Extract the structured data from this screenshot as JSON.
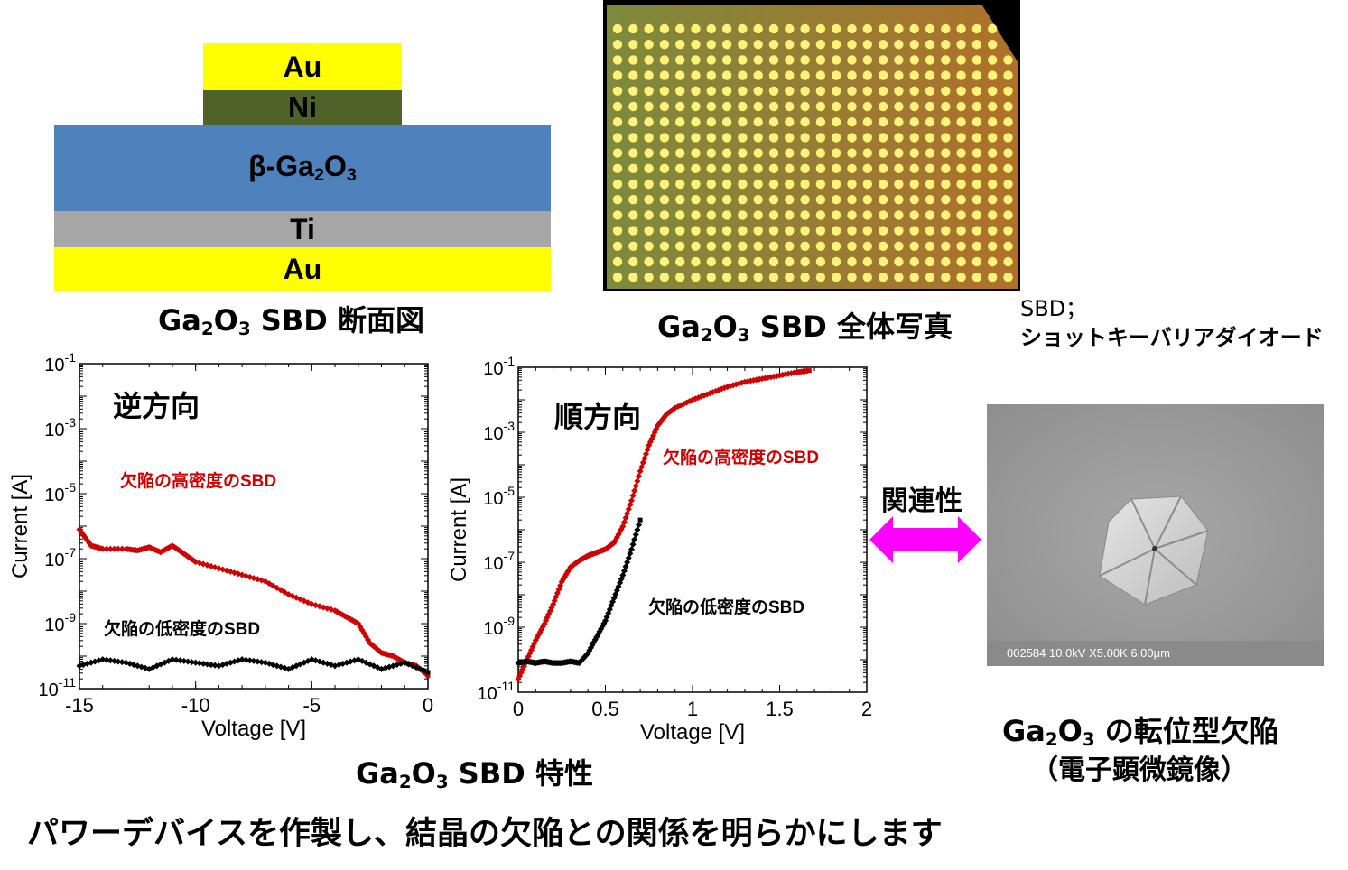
{
  "cross_section": {
    "layers": [
      {
        "label": "Au",
        "color": "#ffff00"
      },
      {
        "label": "Ni",
        "color": "#4f6228"
      },
      {
        "label_main": "β-Ga",
        "sub1": "2",
        "mid": "O",
        "sub2": "3",
        "color": "#4f81bd"
      },
      {
        "label": "Ti",
        "color": "#a6a6a6"
      },
      {
        "label": "Au",
        "color": "#ffff00"
      }
    ],
    "caption": {
      "a": "Ga",
      "s1": "2",
      "b": "O",
      "s2": "3",
      "c": " SBD 断面図"
    }
  },
  "photo": {
    "caption": {
      "a": "Ga",
      "s1": "2",
      "b": "O",
      "s2": "3",
      "c": " SBD 全体写真"
    },
    "colors": {
      "pad": "#fff27a",
      "bg": "#8a7a38"
    }
  },
  "note": {
    "line1": "SBD；",
    "line2": "ショットキーバリアダイオード"
  },
  "chart_data": [
    {
      "type": "scatter",
      "label": "逆方向",
      "xlabel": "Voltage [V]",
      "ylabel": "Current [A]",
      "xlim": [
        -15,
        0
      ],
      "ylim_log10": [
        -11,
        -1
      ],
      "xticks": [
        "-15",
        "-10",
        "-5",
        "0"
      ],
      "yticks": [
        {
          "base": "10",
          "exp": "-1",
          "v": -1
        },
        {
          "base": "10",
          "exp": "-3",
          "v": -3
        },
        {
          "base": "10",
          "exp": "-5",
          "v": -5
        },
        {
          "base": "10",
          "exp": "-7",
          "v": -7
        },
        {
          "base": "10",
          "exp": "-9",
          "v": -9
        },
        {
          "base": "10",
          "exp": "-11",
          "v": -11
        }
      ],
      "series": [
        {
          "name": "欠陥の高密度のSBD",
          "color": "#d00000",
          "x": [
            -15,
            -14.5,
            -14,
            -13,
            -12.5,
            -12,
            -11.5,
            -11,
            -10.5,
            -10,
            -9,
            -8,
            -7,
            -6,
            -5,
            -4,
            -3.5,
            -3,
            -2.5,
            -2,
            -1.5,
            -1,
            -0.5,
            0
          ],
          "y_log10": [
            -6.1,
            -6.6,
            -6.7,
            -6.7,
            -6.75,
            -6.65,
            -6.8,
            -6.6,
            -6.85,
            -7.1,
            -7.3,
            -7.5,
            -7.7,
            -8.1,
            -8.4,
            -8.6,
            -8.8,
            -9.0,
            -9.6,
            -9.9,
            -10.0,
            -10.2,
            -10.3,
            -10.6
          ]
        },
        {
          "name": "欠陥の低密度のSBD",
          "color": "#000000",
          "x": [
            -15,
            -14,
            -13,
            -12,
            -11,
            -10,
            -9,
            -8,
            -7,
            -6,
            -5,
            -4,
            -3,
            -2,
            -1,
            0
          ],
          "y_log10": [
            -10.3,
            -10.1,
            -10.2,
            -10.4,
            -10.1,
            -10.2,
            -10.3,
            -10.1,
            -10.2,
            -10.4,
            -10.1,
            -10.3,
            -10.1,
            -10.4,
            -10.2,
            -10.5
          ]
        }
      ]
    },
    {
      "type": "scatter",
      "label": "順方向",
      "xlabel": "Voltage [V]",
      "ylabel": "Current [A]",
      "xlim": [
        0,
        2
      ],
      "ylim_log10": [
        -11,
        -1
      ],
      "xticks": [
        "0",
        "0.5",
        "1",
        "1.5",
        "2"
      ],
      "yticks": [
        {
          "base": "10",
          "exp": "-1",
          "v": -1
        },
        {
          "base": "10",
          "exp": "-3",
          "v": -3
        },
        {
          "base": "10",
          "exp": "-5",
          "v": -5
        },
        {
          "base": "10",
          "exp": "-7",
          "v": -7
        },
        {
          "base": "10",
          "exp": "-9",
          "v": -9
        },
        {
          "base": "10",
          "exp": "-11",
          "v": -11
        }
      ],
      "series": [
        {
          "name": "欠陥の高密度のSBD",
          "color": "#d00000",
          "x": [
            0.0,
            0.05,
            0.1,
            0.15,
            0.2,
            0.25,
            0.3,
            0.35,
            0.4,
            0.45,
            0.5,
            0.55,
            0.6,
            0.65,
            0.7,
            0.75,
            0.8,
            0.85,
            0.9,
            1.0,
            1.1,
            1.2,
            1.3,
            1.4,
            1.5,
            1.6,
            1.67
          ],
          "y_log10": [
            -10.6,
            -10.0,
            -9.4,
            -8.9,
            -8.3,
            -7.6,
            -7.15,
            -6.95,
            -6.8,
            -6.7,
            -6.6,
            -6.4,
            -5.9,
            -5.1,
            -4.2,
            -3.4,
            -2.8,
            -2.45,
            -2.25,
            -2.0,
            -1.8,
            -1.6,
            -1.45,
            -1.35,
            -1.25,
            -1.15,
            -1.1
          ]
        },
        {
          "name": "欠陥の低密度のSBD",
          "color": "#000000",
          "x": [
            0.0,
            0.05,
            0.1,
            0.15,
            0.2,
            0.25,
            0.3,
            0.35,
            0.4,
            0.45,
            0.5,
            0.55,
            0.6,
            0.65,
            0.7
          ],
          "y_log10": [
            -10.1,
            -10.05,
            -10.1,
            -10.05,
            -10.1,
            -10.1,
            -10.05,
            -10.1,
            -9.8,
            -9.3,
            -8.8,
            -8.1,
            -7.4,
            -6.6,
            -5.7
          ]
        }
      ]
    }
  ],
  "chart_caption": {
    "a": "Ga",
    "s1": "2",
    "b": "O",
    "s2": "3",
    "c": " SBD 特性"
  },
  "arrow": {
    "label": "関連性",
    "color": "#ff00ff"
  },
  "sem": {
    "overlay": "002584 10.0kV X5.00K 6.00μm",
    "caption": {
      "a": "Ga",
      "s1": "2",
      "b": "O",
      "s2": "3",
      "c": " の転位型欠陥"
    },
    "caption2": "（電子顕微鏡像）"
  },
  "footer": "パワーデバイスを作製し、結晶の欠陥との関係を明らかにします"
}
